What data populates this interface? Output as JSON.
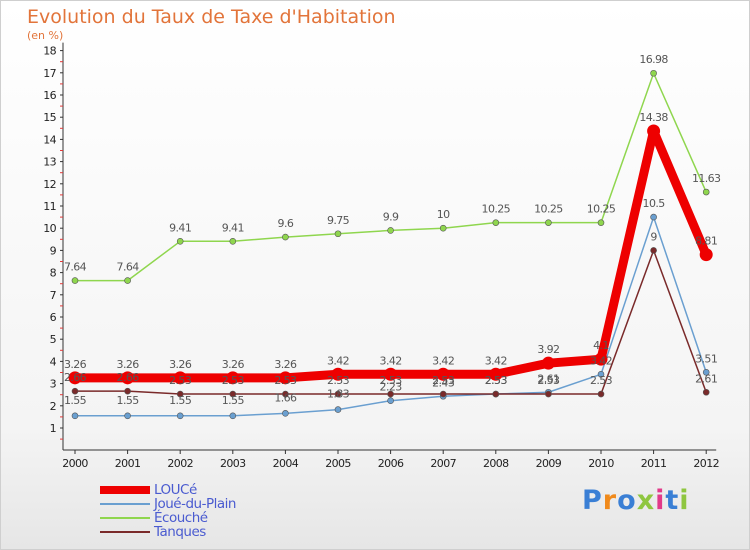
{
  "header": {
    "title": "Evolution du Taux de Taxe d'Habitation",
    "unit": "(en %)"
  },
  "brand": "Proxiti",
  "colors": {
    "title": "#e2743a",
    "legend_text": "#4a5bd0"
  },
  "chart_data": {
    "type": "line",
    "title": "Evolution du Taux de Taxe d'Habitation",
    "ylabel": "(en %)",
    "xlabel": "",
    "x": [
      "2000",
      "2001",
      "2002",
      "2003",
      "2004",
      "2005",
      "2006",
      "2007",
      "2008",
      "2009",
      "2010",
      "2011",
      "2012"
    ],
    "ylim": [
      1,
      18
    ],
    "yticks": [
      "1",
      "2",
      "3",
      "4",
      "5",
      "6",
      "7",
      "8",
      "9",
      "10",
      "11",
      "12",
      "13",
      "14",
      "15",
      "16",
      "17",
      "18"
    ],
    "legend_position": "bottom-left",
    "grid": false,
    "series": [
      {
        "name": "LOUCé",
        "color": "#ee0000",
        "stroke_width": 9,
        "values": [
          3.26,
          3.26,
          3.26,
          3.26,
          3.26,
          3.42,
          3.42,
          3.42,
          3.42,
          3.92,
          4.1,
          14.38,
          8.81
        ],
        "labels": [
          "3.26",
          "3.26",
          "3.26",
          "3.26",
          "3.26",
          "3.42",
          "3.42",
          "3.42",
          "3.42",
          "3.92",
          "4.1",
          "14.38",
          "8.81"
        ]
      },
      {
        "name": "Joué-du-Plain",
        "color": "#6a9fd0",
        "stroke_width": 1.5,
        "values": [
          1.55,
          1.55,
          1.55,
          1.55,
          1.66,
          1.83,
          2.23,
          2.43,
          2.53,
          2.61,
          3.42,
          10.5,
          3.51
        ],
        "labels": [
          "1.55",
          "1.55",
          "1.55",
          "1.55",
          "1.66",
          "1.83",
          "2.23",
          "2.43",
          "2.53",
          "2.61",
          "3.42",
          "10.5",
          "3.51"
        ]
      },
      {
        "name": "Écouché",
        "color": "#8fd64e",
        "stroke_width": 1.5,
        "values": [
          7.64,
          7.64,
          9.41,
          9.41,
          9.6,
          9.75,
          9.9,
          10,
          10.25,
          10.25,
          10.25,
          16.98,
          11.63
        ],
        "labels": [
          "7.64",
          "7.64",
          "9.41",
          "9.41",
          "9.6",
          "9.75",
          "9.9",
          "10",
          "10.25",
          "10.25",
          "10.25",
          "16.98",
          "11.63"
        ]
      },
      {
        "name": "Tanques",
        "color": "#7a2a2a",
        "stroke_width": 1.5,
        "values": [
          2.66,
          2.66,
          2.53,
          2.53,
          2.53,
          2.53,
          2.53,
          2.53,
          2.53,
          2.53,
          2.53,
          9,
          2.61
        ],
        "labels": [
          "2.66",
          "2.66",
          "2.53",
          "2.53",
          "2.53",
          "2.53",
          "2.53",
          "2.53",
          "2.53",
          "2.53",
          "2.53",
          "9",
          "2.61"
        ]
      }
    ]
  }
}
